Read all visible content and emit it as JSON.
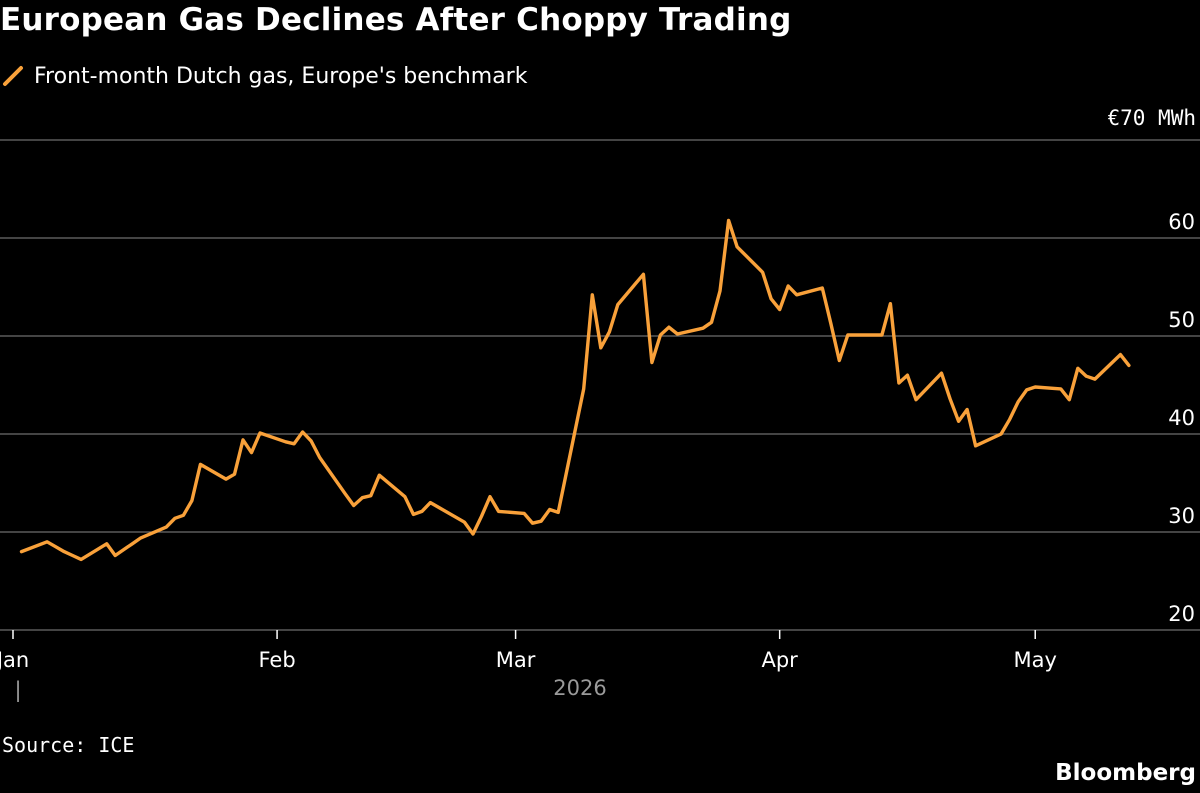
{
  "chart_data": {
    "type": "line",
    "title": "European Gas Declines After Choppy Trading",
    "series": [
      {
        "name": "Front-month Dutch gas, Europe's benchmark",
        "color": "#f9a13a",
        "points": [
          [
            "2026-01-02",
            28.0
          ],
          [
            "2026-01-05",
            29.0
          ],
          [
            "2026-01-06",
            28.5
          ],
          [
            "2026-01-07",
            28.0
          ],
          [
            "2026-01-08",
            27.6
          ],
          [
            "2026-01-09",
            27.2
          ],
          [
            "2026-01-12",
            28.8
          ],
          [
            "2026-01-13",
            27.6
          ],
          [
            "2026-01-14",
            28.2
          ],
          [
            "2026-01-15",
            28.8
          ],
          [
            "2026-01-16",
            29.4
          ],
          [
            "2026-01-19",
            30.5
          ],
          [
            "2026-01-20",
            31.4
          ],
          [
            "2026-01-21",
            31.7
          ],
          [
            "2026-01-22",
            33.2
          ],
          [
            "2026-01-23",
            36.9
          ],
          [
            "2026-01-26",
            35.4
          ],
          [
            "2026-01-27",
            35.9
          ],
          [
            "2026-01-28",
            39.4
          ],
          [
            "2026-01-29",
            38.1
          ],
          [
            "2026-01-30",
            40.1
          ],
          [
            "2026-02-02",
            39.2
          ],
          [
            "2026-02-03",
            39.0
          ],
          [
            "2026-02-04",
            40.2
          ],
          [
            "2026-02-05",
            39.3
          ],
          [
            "2026-02-06",
            37.6
          ],
          [
            "2026-02-09",
            33.9
          ],
          [
            "2026-02-10",
            32.7
          ],
          [
            "2026-02-11",
            33.5
          ],
          [
            "2026-02-12",
            33.7
          ],
          [
            "2026-02-13",
            35.8
          ],
          [
            "2026-02-16",
            33.6
          ],
          [
            "2026-02-17",
            31.8
          ],
          [
            "2026-02-18",
            32.1
          ],
          [
            "2026-02-19",
            33.0
          ],
          [
            "2026-02-20",
            32.5
          ],
          [
            "2026-02-23",
            31.0
          ],
          [
            "2026-02-24",
            29.8
          ],
          [
            "2026-02-25",
            31.6
          ],
          [
            "2026-02-26",
            33.6
          ],
          [
            "2026-02-27",
            32.1
          ],
          [
            "2026-03-02",
            31.9
          ],
          [
            "2026-03-03",
            30.9
          ],
          [
            "2026-03-04",
            31.1
          ],
          [
            "2026-03-05",
            32.3
          ],
          [
            "2026-03-06",
            32.0
          ],
          [
            "2026-03-09",
            44.6
          ],
          [
            "2026-03-10",
            54.2
          ],
          [
            "2026-03-11",
            48.8
          ],
          [
            "2026-03-12",
            50.4
          ],
          [
            "2026-03-13",
            53.2
          ],
          [
            "2026-03-16",
            56.3
          ],
          [
            "2026-03-17",
            47.3
          ],
          [
            "2026-03-18",
            50.1
          ],
          [
            "2026-03-19",
            50.9
          ],
          [
            "2026-03-20",
            50.2
          ],
          [
            "2026-03-23",
            50.8
          ],
          [
            "2026-03-24",
            51.4
          ],
          [
            "2026-03-25",
            54.6
          ],
          [
            "2026-03-26",
            61.8
          ],
          [
            "2026-03-27",
            59.1
          ],
          [
            "2026-03-30",
            56.5
          ],
          [
            "2026-03-31",
            53.8
          ],
          [
            "2026-04-01",
            52.7
          ],
          [
            "2026-04-02",
            55.1
          ],
          [
            "2026-04-03",
            54.2
          ],
          [
            "2026-04-06",
            54.9
          ],
          [
            "2026-04-07",
            51.3
          ],
          [
            "2026-04-08",
            47.5
          ],
          [
            "2026-04-09",
            50.1
          ],
          [
            "2026-04-13",
            50.1
          ],
          [
            "2026-04-14",
            53.3
          ],
          [
            "2026-04-15",
            45.2
          ],
          [
            "2026-04-16",
            46.0
          ],
          [
            "2026-04-17",
            43.5
          ],
          [
            "2026-04-20",
            46.2
          ],
          [
            "2026-04-21",
            43.6
          ],
          [
            "2026-04-22",
            41.3
          ],
          [
            "2026-04-23",
            42.5
          ],
          [
            "2026-04-24",
            38.8
          ],
          [
            "2026-04-27",
            40.0
          ],
          [
            "2026-04-28",
            41.5
          ],
          [
            "2026-04-29",
            43.3
          ],
          [
            "2026-04-30",
            44.5
          ],
          [
            "2026-05-01",
            44.8
          ],
          [
            "2026-05-04",
            44.6
          ],
          [
            "2026-05-05",
            43.5
          ],
          [
            "2026-05-06",
            46.7
          ],
          [
            "2026-05-07",
            45.9
          ],
          [
            "2026-05-08",
            45.6
          ],
          [
            "2026-05-11",
            48.1
          ],
          [
            "2026-05-12",
            47.0
          ]
        ]
      }
    ],
    "x_ticks": [
      {
        "date": "2026-01-01",
        "label": "Jan"
      },
      {
        "date": "2026-02-01",
        "label": "Feb"
      },
      {
        "date": "2026-03-01",
        "label": "Mar"
      },
      {
        "date": "2026-04-01",
        "label": "Apr"
      },
      {
        "date": "2026-05-01",
        "label": "May"
      }
    ],
    "x_year_label": "2026",
    "x_year_tick": "|",
    "y_ticks": [
      {
        "value": 20,
        "label": "20"
      },
      {
        "value": 30,
        "label": "30"
      },
      {
        "value": 40,
        "label": "40"
      },
      {
        "value": 50,
        "label": "50"
      },
      {
        "value": 60,
        "label": "60"
      }
    ],
    "y_unit_label": "€70 MWh",
    "ylim": [
      20,
      70
    ],
    "xlim": [
      "2026-01-01",
      "2026-05-16"
    ],
    "grid": true,
    "legend_position": "top-left",
    "source": "Source: ICE",
    "brand": "Bloomberg",
    "colors": {
      "background": "#000000",
      "grid": "#6e6e6e",
      "line": "#f9a13a"
    }
  }
}
